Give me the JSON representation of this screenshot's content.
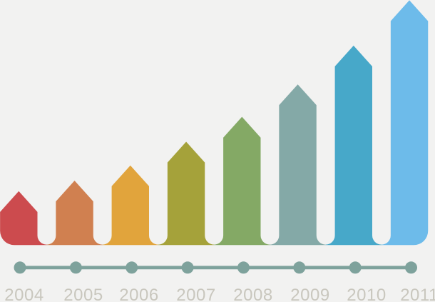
{
  "background_color": "#f2f2f1",
  "chart_data": {
    "type": "bar",
    "title": "",
    "xlabel": "",
    "ylabel": "",
    "legend": "none",
    "gridlines": false,
    "description": "Infographic growth chart: eight upward-pointing arrow bars of increasing height joined in a ribbon along the bottom, above a dotted timeline axis with year labels",
    "categories": [
      "2004",
      "2005",
      "2006",
      "2007",
      "2008",
      "2009",
      "2010",
      "2011"
    ],
    "values": [
      75.5,
      90.3,
      111.6,
      144.8,
      179.7,
      225.1,
      279.4,
      342.9
    ],
    "values_unit": "px (bar height from ribbon baseline to arrow tip; no numeric axis shown)",
    "bar_colors": [
      "#cc4b4e",
      "#d08050",
      "#e1a43c",
      "#a5a23a",
      "#84a965",
      "#84a9a7",
      "#47a8c9",
      "#6dbbea"
    ],
    "timeline": {
      "line_color": "#7ea29c",
      "dot_color": "#7ea29c",
      "dot_count": 8
    },
    "label_color": "#c9c7be"
  }
}
